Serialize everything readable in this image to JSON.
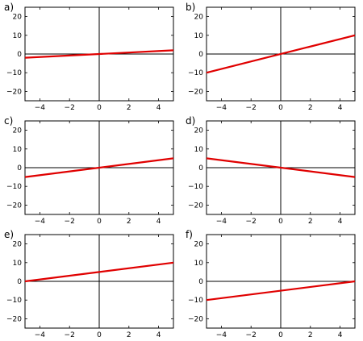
{
  "chart_data": [
    {
      "type": "line",
      "label": "a)",
      "x": [
        -5,
        5
      ],
      "y": [
        -2,
        2
      ],
      "xlim": [
        -5,
        5
      ],
      "ylim": [
        -25,
        25
      ],
      "xticks": [
        -4,
        -2,
        0,
        2,
        4
      ],
      "yticks": [
        -20,
        -10,
        0,
        10,
        20
      ],
      "xtick_labels": [
        "−4",
        "−2",
        "0",
        "2",
        "4"
      ],
      "ytick_labels": [
        "−20",
        "−10",
        "0",
        "10",
        "20"
      ],
      "color": "#e00000"
    },
    {
      "type": "line",
      "label": "b)",
      "x": [
        -5,
        5
      ],
      "y": [
        -10,
        10
      ],
      "xlim": [
        -5,
        5
      ],
      "ylim": [
        -25,
        25
      ],
      "xticks": [
        -4,
        -2,
        0,
        2,
        4
      ],
      "yticks": [
        -20,
        -10,
        0,
        10,
        20
      ],
      "xtick_labels": [
        "−4",
        "−2",
        "0",
        "2",
        "4"
      ],
      "ytick_labels": [
        "−20",
        "−10",
        "0",
        "10",
        "20"
      ],
      "color": "#e00000"
    },
    {
      "type": "line",
      "label": "c)",
      "x": [
        -5,
        5
      ],
      "y": [
        -5,
        5
      ],
      "xlim": [
        -5,
        5
      ],
      "ylim": [
        -25,
        25
      ],
      "xticks": [
        -4,
        -2,
        0,
        2,
        4
      ],
      "yticks": [
        -20,
        -10,
        0,
        10,
        20
      ],
      "xtick_labels": [
        "−4",
        "−2",
        "0",
        "2",
        "4"
      ],
      "ytick_labels": [
        "−20",
        "−10",
        "0",
        "10",
        "20"
      ],
      "color": "#e00000"
    },
    {
      "type": "line",
      "label": "d)",
      "x": [
        -5,
        5
      ],
      "y": [
        5,
        -5
      ],
      "xlim": [
        -5,
        5
      ],
      "ylim": [
        -25,
        25
      ],
      "xticks": [
        -4,
        -2,
        0,
        2,
        4
      ],
      "yticks": [
        -20,
        -10,
        0,
        10,
        20
      ],
      "xtick_labels": [
        "−4",
        "−2",
        "0",
        "2",
        "4"
      ],
      "ytick_labels": [
        "−20",
        "−10",
        "0",
        "10",
        "20"
      ],
      "color": "#e00000"
    },
    {
      "type": "line",
      "label": "e)",
      "x": [
        -5,
        5
      ],
      "y": [
        0,
        10
      ],
      "xlim": [
        -5,
        5
      ],
      "ylim": [
        -25,
        25
      ],
      "xticks": [
        -4,
        -2,
        0,
        2,
        4
      ],
      "yticks": [
        -20,
        -10,
        0,
        10,
        20
      ],
      "xtick_labels": [
        "−4",
        "−2",
        "0",
        "2",
        "4"
      ],
      "ytick_labels": [
        "−20",
        "−10",
        "0",
        "10",
        "20"
      ],
      "color": "#e00000"
    },
    {
      "type": "line",
      "label": "f)",
      "x": [
        -5,
        5
      ],
      "y": [
        -10,
        0
      ],
      "xlim": [
        -5,
        5
      ],
      "ylim": [
        -25,
        25
      ],
      "xticks": [
        -4,
        -2,
        0,
        2,
        4
      ],
      "yticks": [
        -20,
        -10,
        0,
        10,
        20
      ],
      "xtick_labels": [
        "−4",
        "−2",
        "0",
        "2",
        "4"
      ],
      "ytick_labels": [
        "−20",
        "−10",
        "0",
        "10",
        "20"
      ],
      "color": "#e00000"
    }
  ]
}
